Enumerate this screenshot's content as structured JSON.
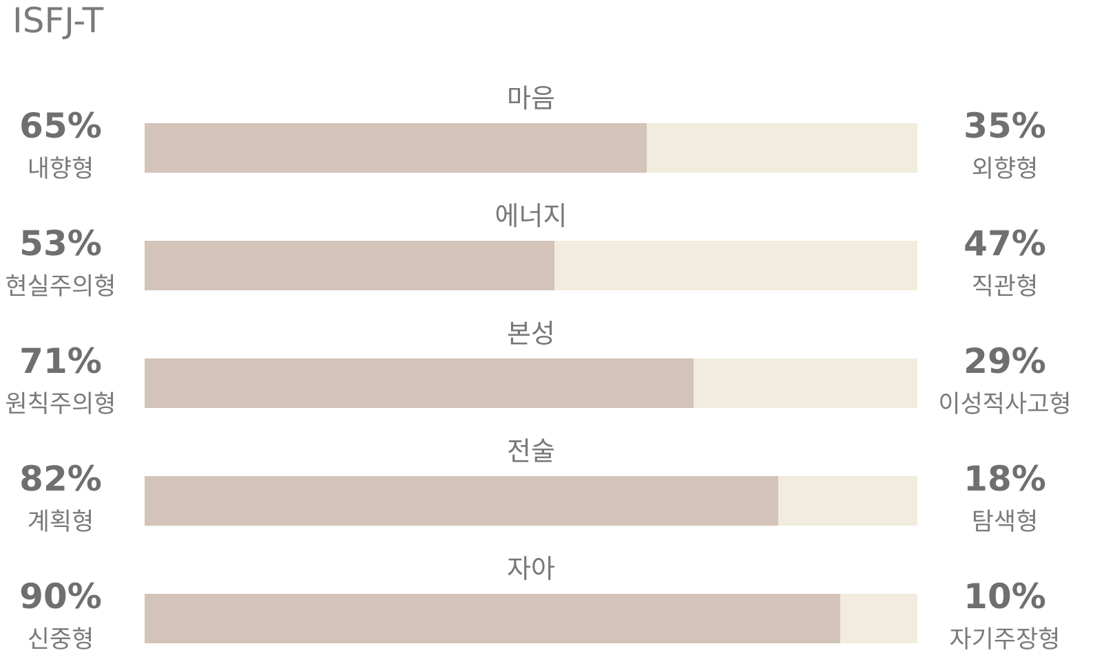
{
  "title": "ISFJ-T",
  "colors": {
    "left_fill": "#d3c3b9",
    "right_fill": "#f1ecdd",
    "text": "#6f6f6f"
  },
  "chart_data": {
    "type": "bar",
    "orientation": "horizontal-stacked",
    "title": "ISFJ-T",
    "categories": [
      "마음",
      "에너지",
      "본성",
      "전술",
      "자아"
    ],
    "series": [
      {
        "name": "left",
        "values": [
          65,
          53,
          71,
          82,
          90
        ]
      },
      {
        "name": "right",
        "values": [
          35,
          47,
          29,
          18,
          10
        ]
      }
    ],
    "rows": [
      {
        "category": "마음",
        "left_pct": "65%",
        "left_label": "내향형",
        "right_pct": "35%",
        "right_label": "외향형",
        "left_value": 65,
        "right_value": 35
      },
      {
        "category": "에너지",
        "left_pct": "53%",
        "left_label": "현실주의형",
        "right_pct": "47%",
        "right_label": "직관형",
        "left_value": 53,
        "right_value": 47
      },
      {
        "category": "본성",
        "left_pct": "71%",
        "left_label": "원칙주의형",
        "right_pct": "29%",
        "right_label": "이성적사고형",
        "left_value": 71,
        "right_value": 29
      },
      {
        "category": "전술",
        "left_pct": "82%",
        "left_label": "계획형",
        "right_pct": "18%",
        "right_label": "탐색형",
        "left_value": 82,
        "right_value": 18
      },
      {
        "category": "자아",
        "left_pct": "90%",
        "left_label": "신중형",
        "right_pct": "10%",
        "right_label": "자기주장형",
        "left_value": 90,
        "right_value": 10
      }
    ],
    "xlim": [
      0,
      100
    ],
    "grid": false,
    "legend": "none"
  }
}
